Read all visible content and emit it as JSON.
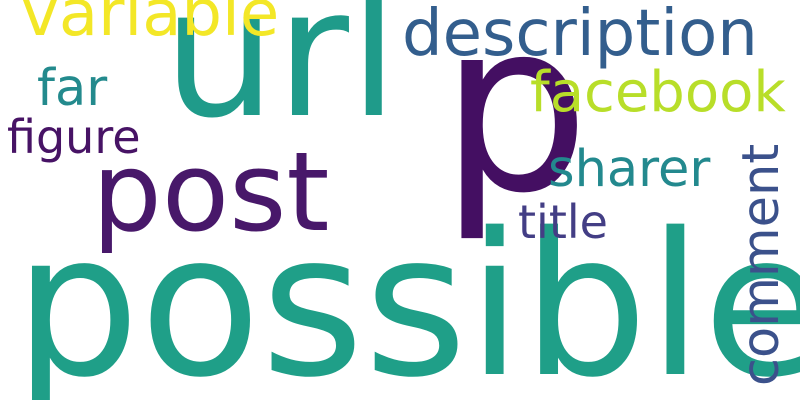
{
  "words": {
    "p": {
      "text": "p",
      "color": "#440f62"
    },
    "url": {
      "text": "url",
      "color": "#1f9b8a"
    },
    "possible": {
      "text": "possible",
      "color": "#1f9f88"
    },
    "post": {
      "text": "post",
      "color": "#48186a"
    },
    "description": {
      "text": "description",
      "color": "#335e8d"
    },
    "variable": {
      "text": "variable",
      "color": "#f3e727"
    },
    "facebook": {
      "text": "facebook",
      "color": "#b8de29"
    },
    "comment": {
      "text": "comment",
      "color": "#3b518b"
    },
    "sharer": {
      "text": "sharer",
      "color": "#23898e"
    },
    "title": {
      "text": "title",
      "color": "#433e85"
    },
    "far": {
      "text": "far",
      "color": "#238a8d"
    },
    "figure": {
      "text": "figure",
      "color": "#471365"
    }
  }
}
